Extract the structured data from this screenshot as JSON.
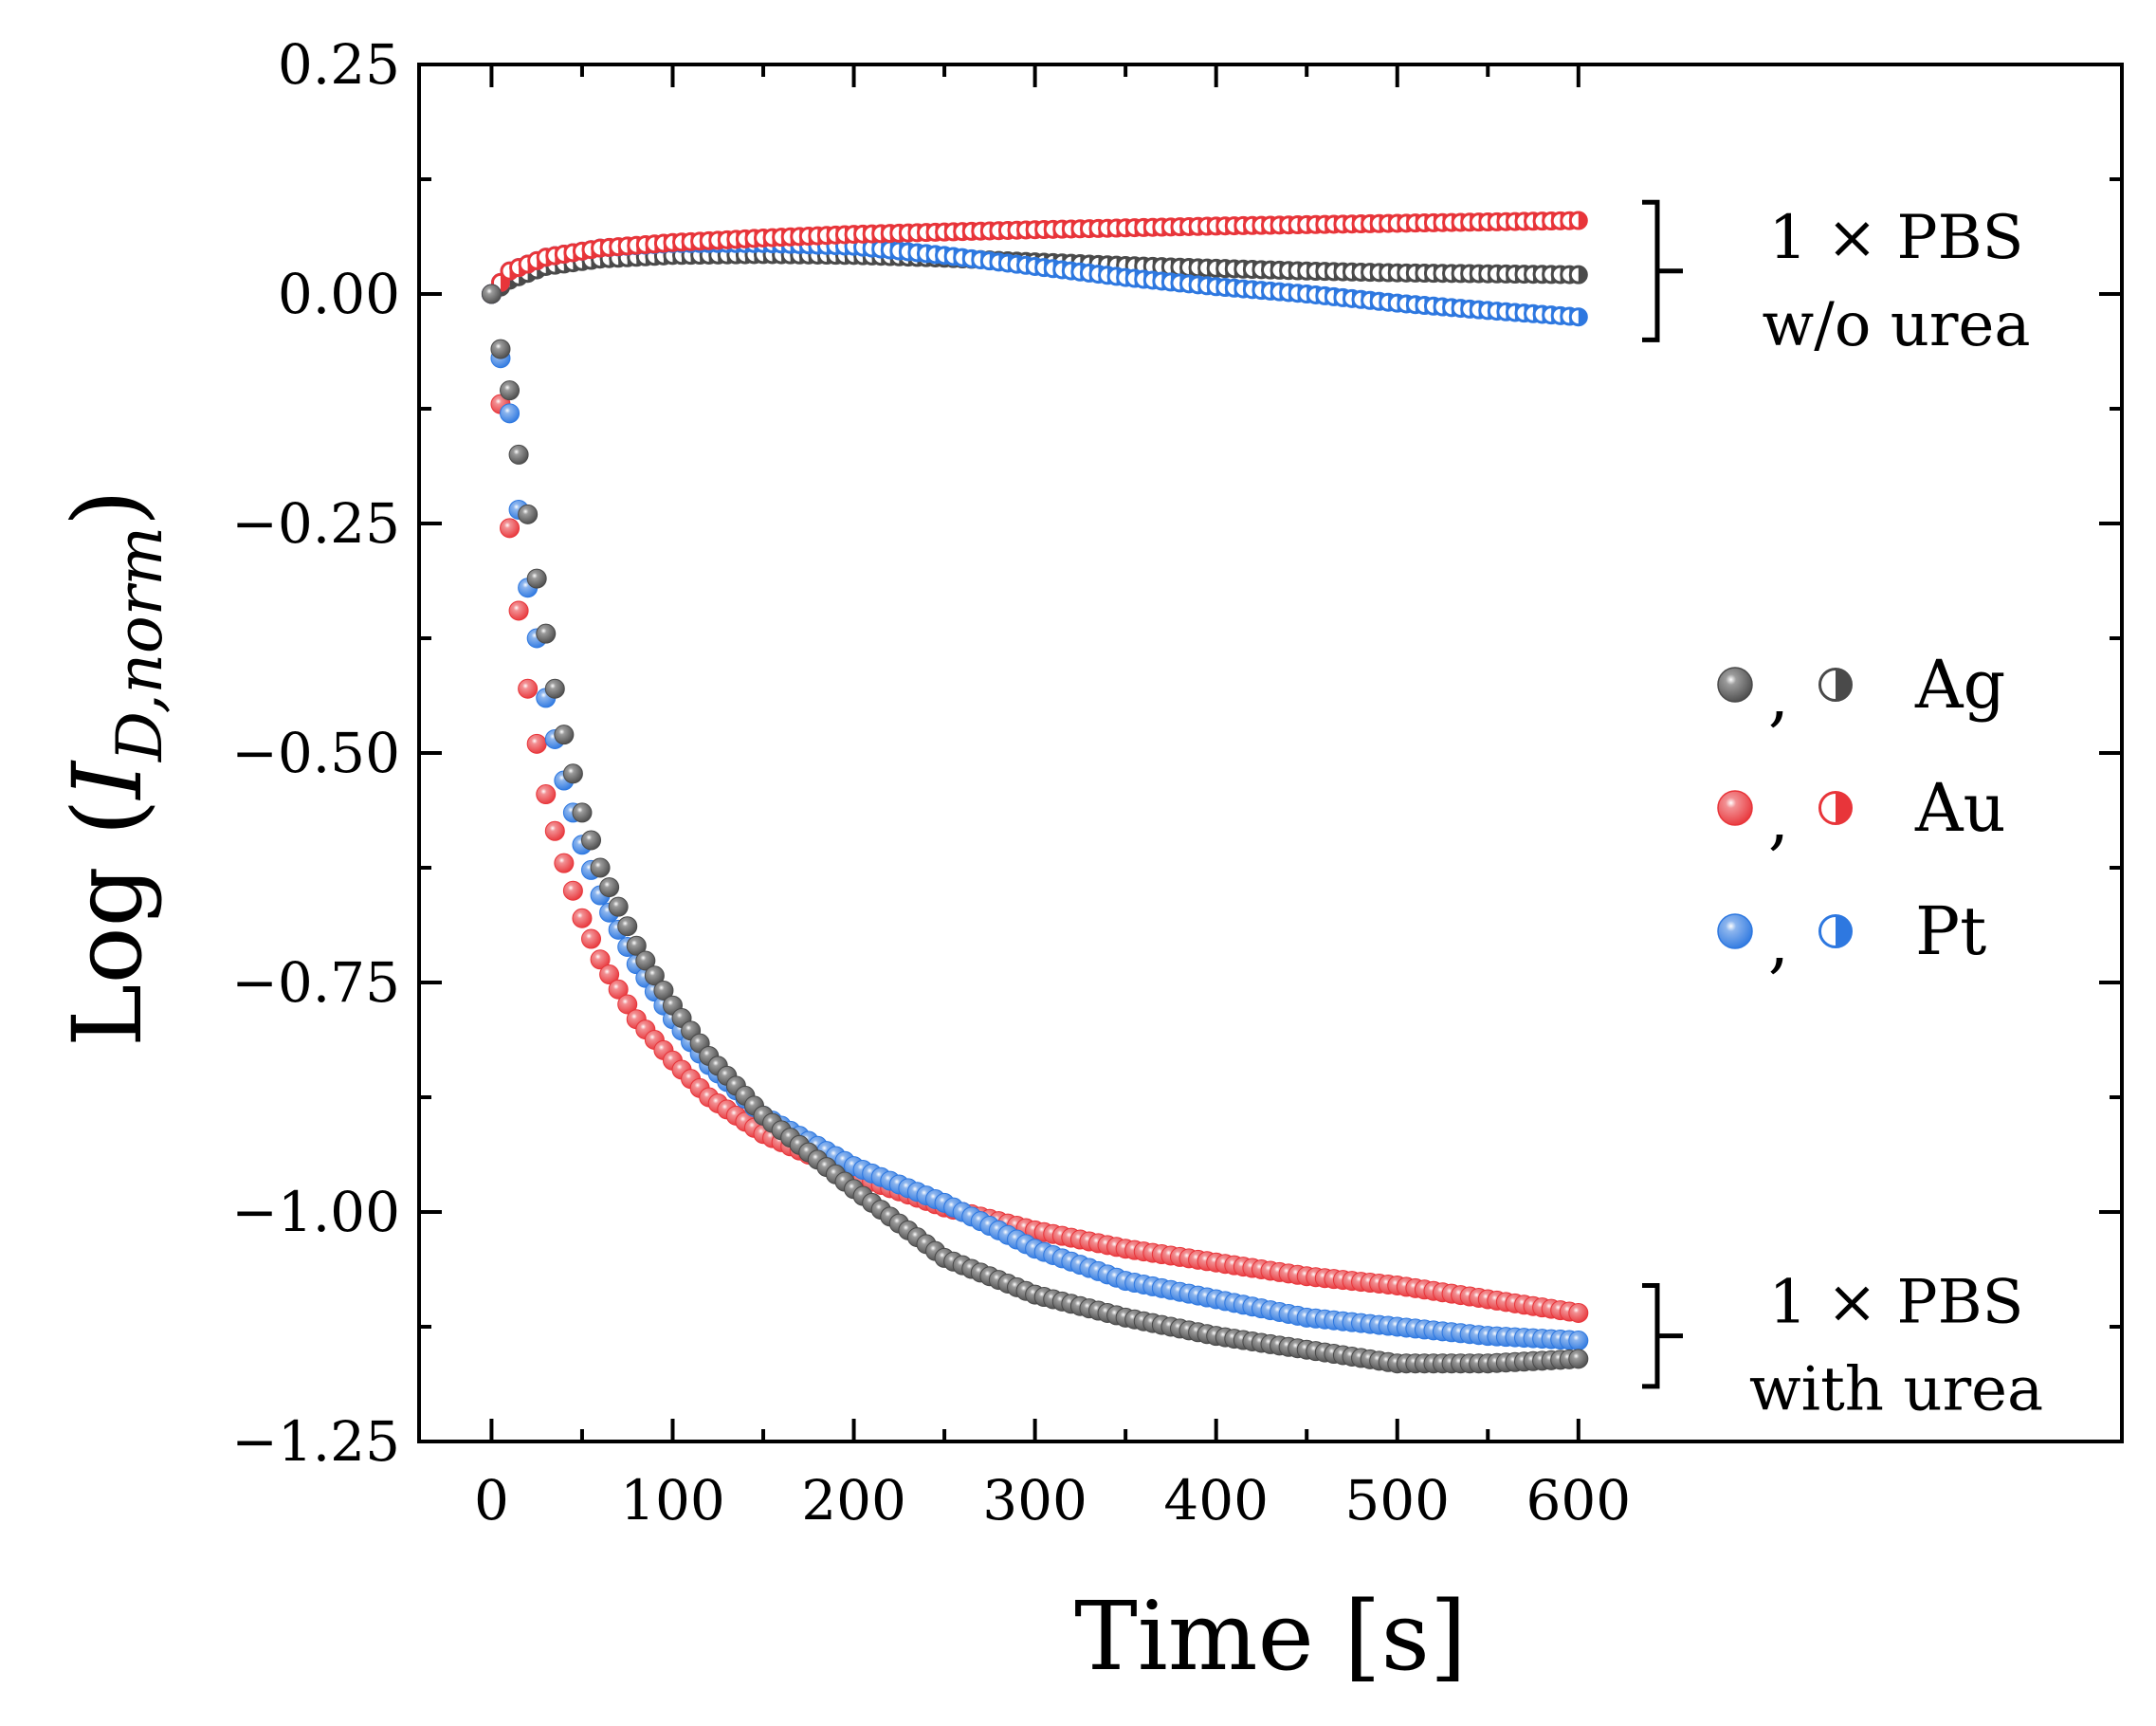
{
  "chart_data": {
    "type": "scatter",
    "xlabel": "Time [s]",
    "ylabel_prefix": "Log (",
    "ylabel_var": "I",
    "ylabel_sub": "D,norm",
    "ylabel_suffix": ")",
    "xlim": [
      -40,
      900
    ],
    "ylim": [
      -1.25,
      0.25
    ],
    "xticks": [
      0,
      100,
      200,
      300,
      400,
      500,
      600
    ],
    "xtick_labels": [
      "0",
      "100",
      "200",
      "300",
      "400",
      "500",
      "600"
    ],
    "yticks": [
      0.25,
      0.0,
      -0.25,
      -0.5,
      -0.75,
      -1.0,
      -1.25
    ],
    "ytick_labels": [
      "0.25",
      "0.00",
      "−0.25",
      "−0.50",
      "−0.75",
      "−1.00",
      "−1.25"
    ],
    "sampling_interval_s": 5,
    "series": [
      {
        "name": "Ag",
        "color": "#4a4a4a",
        "condition": "1 × PBS with urea",
        "marker": "filled-sphere",
        "keypoints": [
          [
            0,
            0.0
          ],
          [
            5,
            -0.06
          ],
          [
            10,
            -0.105
          ],
          [
            15,
            -0.175
          ],
          [
            20,
            -0.24
          ],
          [
            25,
            -0.31
          ],
          [
            30,
            -0.37
          ],
          [
            35,
            -0.43
          ],
          [
            40,
            -0.48
          ],
          [
            50,
            -0.565
          ],
          [
            60,
            -0.625
          ],
          [
            80,
            -0.71
          ],
          [
            100,
            -0.775
          ],
          [
            120,
            -0.83
          ],
          [
            150,
            -0.895
          ],
          [
            200,
            -0.975
          ],
          [
            250,
            -1.05
          ],
          [
            300,
            -1.09
          ],
          [
            350,
            -1.115
          ],
          [
            400,
            -1.135
          ],
          [
            450,
            -1.15
          ],
          [
            500,
            -1.165
          ],
          [
            550,
            -1.165
          ],
          [
            600,
            -1.16
          ]
        ]
      },
      {
        "name": "Au",
        "color": "#e8353a",
        "condition": "1 × PBS with urea",
        "marker": "filled-sphere",
        "keypoints": [
          [
            0,
            0.0
          ],
          [
            5,
            -0.12
          ],
          [
            10,
            -0.255
          ],
          [
            15,
            -0.345
          ],
          [
            20,
            -0.43
          ],
          [
            25,
            -0.49
          ],
          [
            30,
            -0.545
          ],
          [
            35,
            -0.585
          ],
          [
            40,
            -0.62
          ],
          [
            50,
            -0.68
          ],
          [
            60,
            -0.725
          ],
          [
            80,
            -0.79
          ],
          [
            100,
            -0.835
          ],
          [
            120,
            -0.875
          ],
          [
            150,
            -0.915
          ],
          [
            200,
            -0.96
          ],
          [
            250,
            -0.995
          ],
          [
            300,
            -1.02
          ],
          [
            350,
            -1.04
          ],
          [
            400,
            -1.055
          ],
          [
            450,
            -1.07
          ],
          [
            500,
            -1.08
          ],
          [
            550,
            -1.095
          ],
          [
            600,
            -1.11
          ]
        ]
      },
      {
        "name": "Pt",
        "color": "#2e78e0",
        "condition": "1 × PBS with urea",
        "marker": "filled-sphere",
        "keypoints": [
          [
            0,
            0.0
          ],
          [
            5,
            -0.07
          ],
          [
            10,
            -0.13
          ],
          [
            15,
            -0.235
          ],
          [
            20,
            -0.32
          ],
          [
            25,
            -0.375
          ],
          [
            30,
            -0.44
          ],
          [
            35,
            -0.485
          ],
          [
            40,
            -0.53
          ],
          [
            50,
            -0.6
          ],
          [
            60,
            -0.655
          ],
          [
            80,
            -0.73
          ],
          [
            100,
            -0.79
          ],
          [
            120,
            -0.84
          ],
          [
            150,
            -0.895
          ],
          [
            200,
            -0.95
          ],
          [
            250,
            -0.99
          ],
          [
            300,
            -1.04
          ],
          [
            350,
            -1.075
          ],
          [
            400,
            -1.095
          ],
          [
            450,
            -1.115
          ],
          [
            500,
            -1.125
          ],
          [
            550,
            -1.135
          ],
          [
            600,
            -1.14
          ]
        ]
      },
      {
        "name": "Ag",
        "color": "#4a4a4a",
        "condition": "1 × PBS w/o urea",
        "marker": "half-filled",
        "keypoints": [
          [
            0,
            0.0
          ],
          [
            10,
            0.015
          ],
          [
            30,
            0.03
          ],
          [
            60,
            0.038
          ],
          [
            100,
            0.042
          ],
          [
            150,
            0.043
          ],
          [
            200,
            0.042
          ],
          [
            250,
            0.039
          ],
          [
            300,
            0.035
          ],
          [
            350,
            0.031
          ],
          [
            400,
            0.028
          ],
          [
            450,
            0.025
          ],
          [
            500,
            0.023
          ],
          [
            550,
            0.022
          ],
          [
            600,
            0.021
          ]
        ]
      },
      {
        "name": "Au",
        "color": "#e8353a",
        "condition": "1 × PBS w/o urea",
        "marker": "half-filled",
        "keypoints": [
          [
            0,
            0.0
          ],
          [
            10,
            0.025
          ],
          [
            30,
            0.04
          ],
          [
            60,
            0.05
          ],
          [
            100,
            0.056
          ],
          [
            150,
            0.061
          ],
          [
            200,
            0.065
          ],
          [
            300,
            0.07
          ],
          [
            400,
            0.074
          ],
          [
            500,
            0.077
          ],
          [
            600,
            0.08
          ]
        ]
      },
      {
        "name": "Pt",
        "color": "#2e78e0",
        "condition": "1 × PBS w/o urea",
        "marker": "half-filled",
        "keypoints": [
          [
            0,
            0.0
          ],
          [
            10,
            0.025
          ],
          [
            30,
            0.04
          ],
          [
            60,
            0.05
          ],
          [
            100,
            0.055
          ],
          [
            150,
            0.055
          ],
          [
            200,
            0.052
          ],
          [
            250,
            0.042
          ],
          [
            300,
            0.03
          ],
          [
            350,
            0.018
          ],
          [
            400,
            0.008
          ],
          [
            450,
            0.0
          ],
          [
            500,
            -0.01
          ],
          [
            550,
            -0.018
          ],
          [
            600,
            -0.025
          ]
        ]
      }
    ],
    "annotations": [
      {
        "lines": [
          "1 × PBS",
          "w/o urea"
        ],
        "bracket_y": [
          0.1,
          -0.05
        ]
      },
      {
        "lines": [
          "1 × PBS",
          "with urea"
        ],
        "bracket_y": [
          -1.08,
          -1.19
        ]
      }
    ],
    "legend": {
      "position": "center-right",
      "separator": ",",
      "entries": [
        {
          "label": "Ag",
          "color": "#4a4a4a"
        },
        {
          "label": "Au",
          "color": "#e8353a"
        },
        {
          "label": "Pt",
          "color": "#2e78e0"
        }
      ]
    }
  }
}
